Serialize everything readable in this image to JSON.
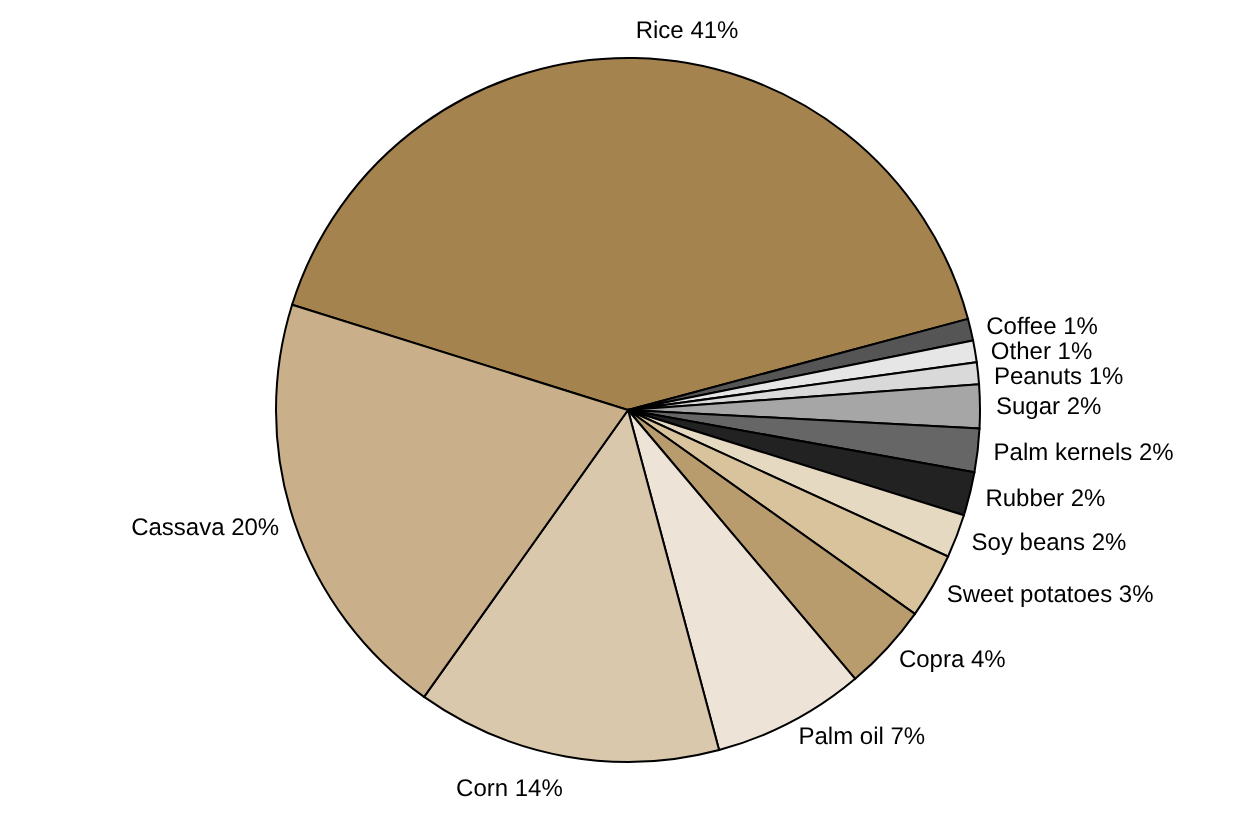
{
  "chart_data": {
    "type": "pie",
    "categories": [
      "Rice",
      "Coffee",
      "Other",
      "Peanuts",
      "Sugar",
      "Palm kernels",
      "Rubber",
      "Soy beans",
      "Sweet potatoes",
      "Copra",
      "Palm oil",
      "Corn",
      "Cassava"
    ],
    "values": [
      41,
      1,
      1,
      1,
      2,
      2,
      2,
      2,
      3,
      4,
      7,
      14,
      20
    ],
    "value_labels": [
      "41%",
      "1%",
      "1%",
      "1%",
      "2%",
      "2%",
      "2%",
      "2%",
      "3%",
      "4%",
      "7%",
      "14%",
      "20%"
    ],
    "colors": [
      "#a4834f",
      "#555555",
      "#e6e6e6",
      "#d9d9d9",
      "#a6a6a6",
      "#666666",
      "#222222",
      "#e6d9c2",
      "#d9c39d",
      "#b89c6e",
      "#ede3d6",
      "#d9c8ab",
      "#c9b08b"
    ]
  }
}
